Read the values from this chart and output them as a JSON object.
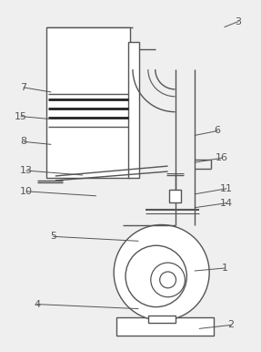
{
  "bg_color": "#efefef",
  "line_color": "#555555",
  "lw": 1.0,
  "labels_info": [
    [
      "3",
      248,
      28,
      263,
      22
    ],
    [
      "7",
      55,
      100,
      25,
      95
    ],
    [
      "15",
      55,
      130,
      22,
      127
    ],
    [
      "8",
      55,
      158,
      25,
      155
    ],
    [
      "13",
      90,
      192,
      28,
      187
    ],
    [
      "10",
      105,
      215,
      28,
      210
    ],
    [
      "6",
      215,
      148,
      240,
      143
    ],
    [
      "16",
      215,
      178,
      245,
      173
    ],
    [
      "11",
      215,
      213,
      250,
      207
    ],
    [
      "14",
      215,
      228,
      250,
      223
    ],
    [
      "5",
      152,
      265,
      58,
      260
    ],
    [
      "1",
      215,
      298,
      248,
      295
    ],
    [
      "4",
      152,
      340,
      40,
      335
    ],
    [
      "2",
      220,
      362,
      255,
      358
    ]
  ]
}
